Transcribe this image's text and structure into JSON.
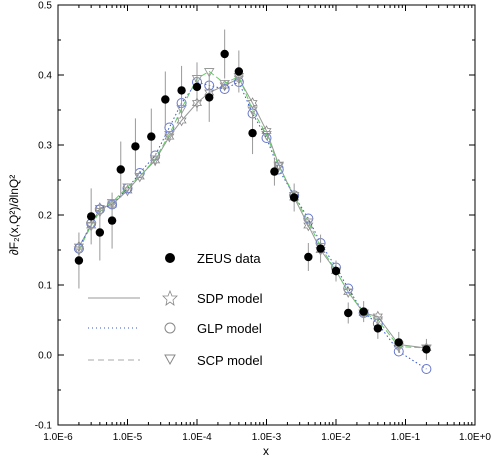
{
  "chart_data": {
    "type": "scatter",
    "xlabel": "x",
    "ylabel": "∂F₂(x,Q²)/∂lnQ²",
    "x_scale": "log",
    "xlim": [
      1e-06,
      1
    ],
    "ylim": [
      -0.1,
      0.5
    ],
    "x_ticks": [
      1e-06,
      1e-05,
      0.0001,
      0.001,
      0.01,
      0.1,
      1
    ],
    "x_tick_labels": [
      "1.0E-6",
      "1.0E-5",
      "1.0E-4",
      "1.0E-3",
      "1.0E-2",
      "1.0E-1",
      "1.0E+0"
    ],
    "y_ticks": [
      -0.1,
      0,
      0.1,
      0.2,
      0.3,
      0.4,
      0.5
    ],
    "y_tick_labels": [
      "-0.1",
      "0.0",
      "0.1",
      "0.2",
      "0.3",
      "0.4",
      "0.5"
    ],
    "grid": false,
    "legend_position": "center-left",
    "series": [
      {
        "name": "ZEUS data",
        "kind": "points-with-errors",
        "marker": "filled-circle",
        "color": "#000000",
        "x": [
          2e-06,
          3e-06,
          4e-06,
          6e-06,
          8e-06,
          1.3e-05,
          2.2e-05,
          3.5e-05,
          6e-05,
          0.0001,
          0.00015,
          0.00025,
          0.0004,
          0.00063,
          0.0013,
          0.0025,
          0.004,
          0.006,
          0.01,
          0.015,
          0.025,
          0.04,
          0.08,
          0.2
        ],
        "y": [
          0.135,
          0.198,
          0.175,
          0.192,
          0.265,
          0.298,
          0.312,
          0.365,
          0.378,
          0.383,
          0.368,
          0.43,
          0.405,
          0.317,
          0.262,
          0.225,
          0.14,
          0.152,
          0.12,
          0.06,
          0.062,
          0.038,
          0.018,
          0.008
        ],
        "err": [
          0.04,
          0.04,
          0.04,
          0.04,
          0.04,
          0.04,
          0.04,
          0.04,
          0.035,
          0.035,
          0.035,
          0.035,
          0.03,
          0.03,
          0.02,
          0.02,
          0.02,
          0.02,
          0.015,
          0.015,
          0.015,
          0.015,
          0.015,
          0.015
        ]
      },
      {
        "name": "SDP model",
        "kind": "line-with-markers",
        "marker": "star",
        "line": "solid",
        "color": "#999999",
        "x": [
          2e-06,
          3e-06,
          4e-06,
          6e-06,
          1e-05,
          1.5e-05,
          2.5e-05,
          4e-05,
          6e-05,
          0.0001,
          0.00015,
          0.00025,
          0.0004,
          0.00063,
          0.001,
          0.0015,
          0.0025,
          0.004,
          0.006,
          0.01,
          0.015,
          0.025,
          0.04,
          0.08,
          0.2
        ],
        "y": [
          0.155,
          0.185,
          0.21,
          0.215,
          0.235,
          0.255,
          0.278,
          0.312,
          0.335,
          0.36,
          0.375,
          0.385,
          0.395,
          0.36,
          0.32,
          0.272,
          0.225,
          0.185,
          0.15,
          0.12,
          0.09,
          0.06,
          0.055,
          0.015,
          0.01
        ]
      },
      {
        "name": "GLP model",
        "kind": "line-with-markers",
        "marker": "open-circle",
        "line": "dotted",
        "color": "#3355cc",
        "x": [
          2e-06,
          3e-06,
          4e-06,
          6e-06,
          1e-05,
          1.5e-05,
          2.5e-05,
          4e-05,
          6e-05,
          0.0001,
          0.00015,
          0.00025,
          0.0004,
          0.00063,
          0.001,
          0.0015,
          0.0025,
          0.004,
          0.006,
          0.01,
          0.015,
          0.025,
          0.04,
          0.08,
          0.2
        ],
        "y": [
          0.152,
          0.188,
          0.208,
          0.215,
          0.238,
          0.26,
          0.285,
          0.325,
          0.36,
          0.39,
          0.385,
          0.38,
          0.39,
          0.345,
          0.31,
          0.265,
          0.228,
          0.195,
          0.16,
          0.125,
          0.095,
          0.06,
          0.045,
          0.005,
          -0.02
        ]
      },
      {
        "name": "SCP model",
        "kind": "line-with-markers",
        "marker": "open-triangle-down",
        "line": "dashed",
        "color": "#66cc66",
        "x": [
          2e-06,
          3e-06,
          4e-06,
          6e-06,
          1e-05,
          1.5e-05,
          2.5e-05,
          4e-05,
          6e-05,
          0.0001,
          0.00015,
          0.00025,
          0.0004,
          0.00063,
          0.001,
          0.0015,
          0.0025,
          0.004,
          0.006,
          0.01,
          0.015,
          0.025,
          0.04,
          0.08,
          0.2
        ],
        "y": [
          0.15,
          0.185,
          0.205,
          0.218,
          0.24,
          0.255,
          0.28,
          0.315,
          0.352,
          0.395,
          0.405,
          0.388,
          0.398,
          0.35,
          0.315,
          0.27,
          0.228,
          0.19,
          0.155,
          0.12,
          0.09,
          0.06,
          0.05,
          0.012,
          0.01
        ]
      }
    ]
  }
}
